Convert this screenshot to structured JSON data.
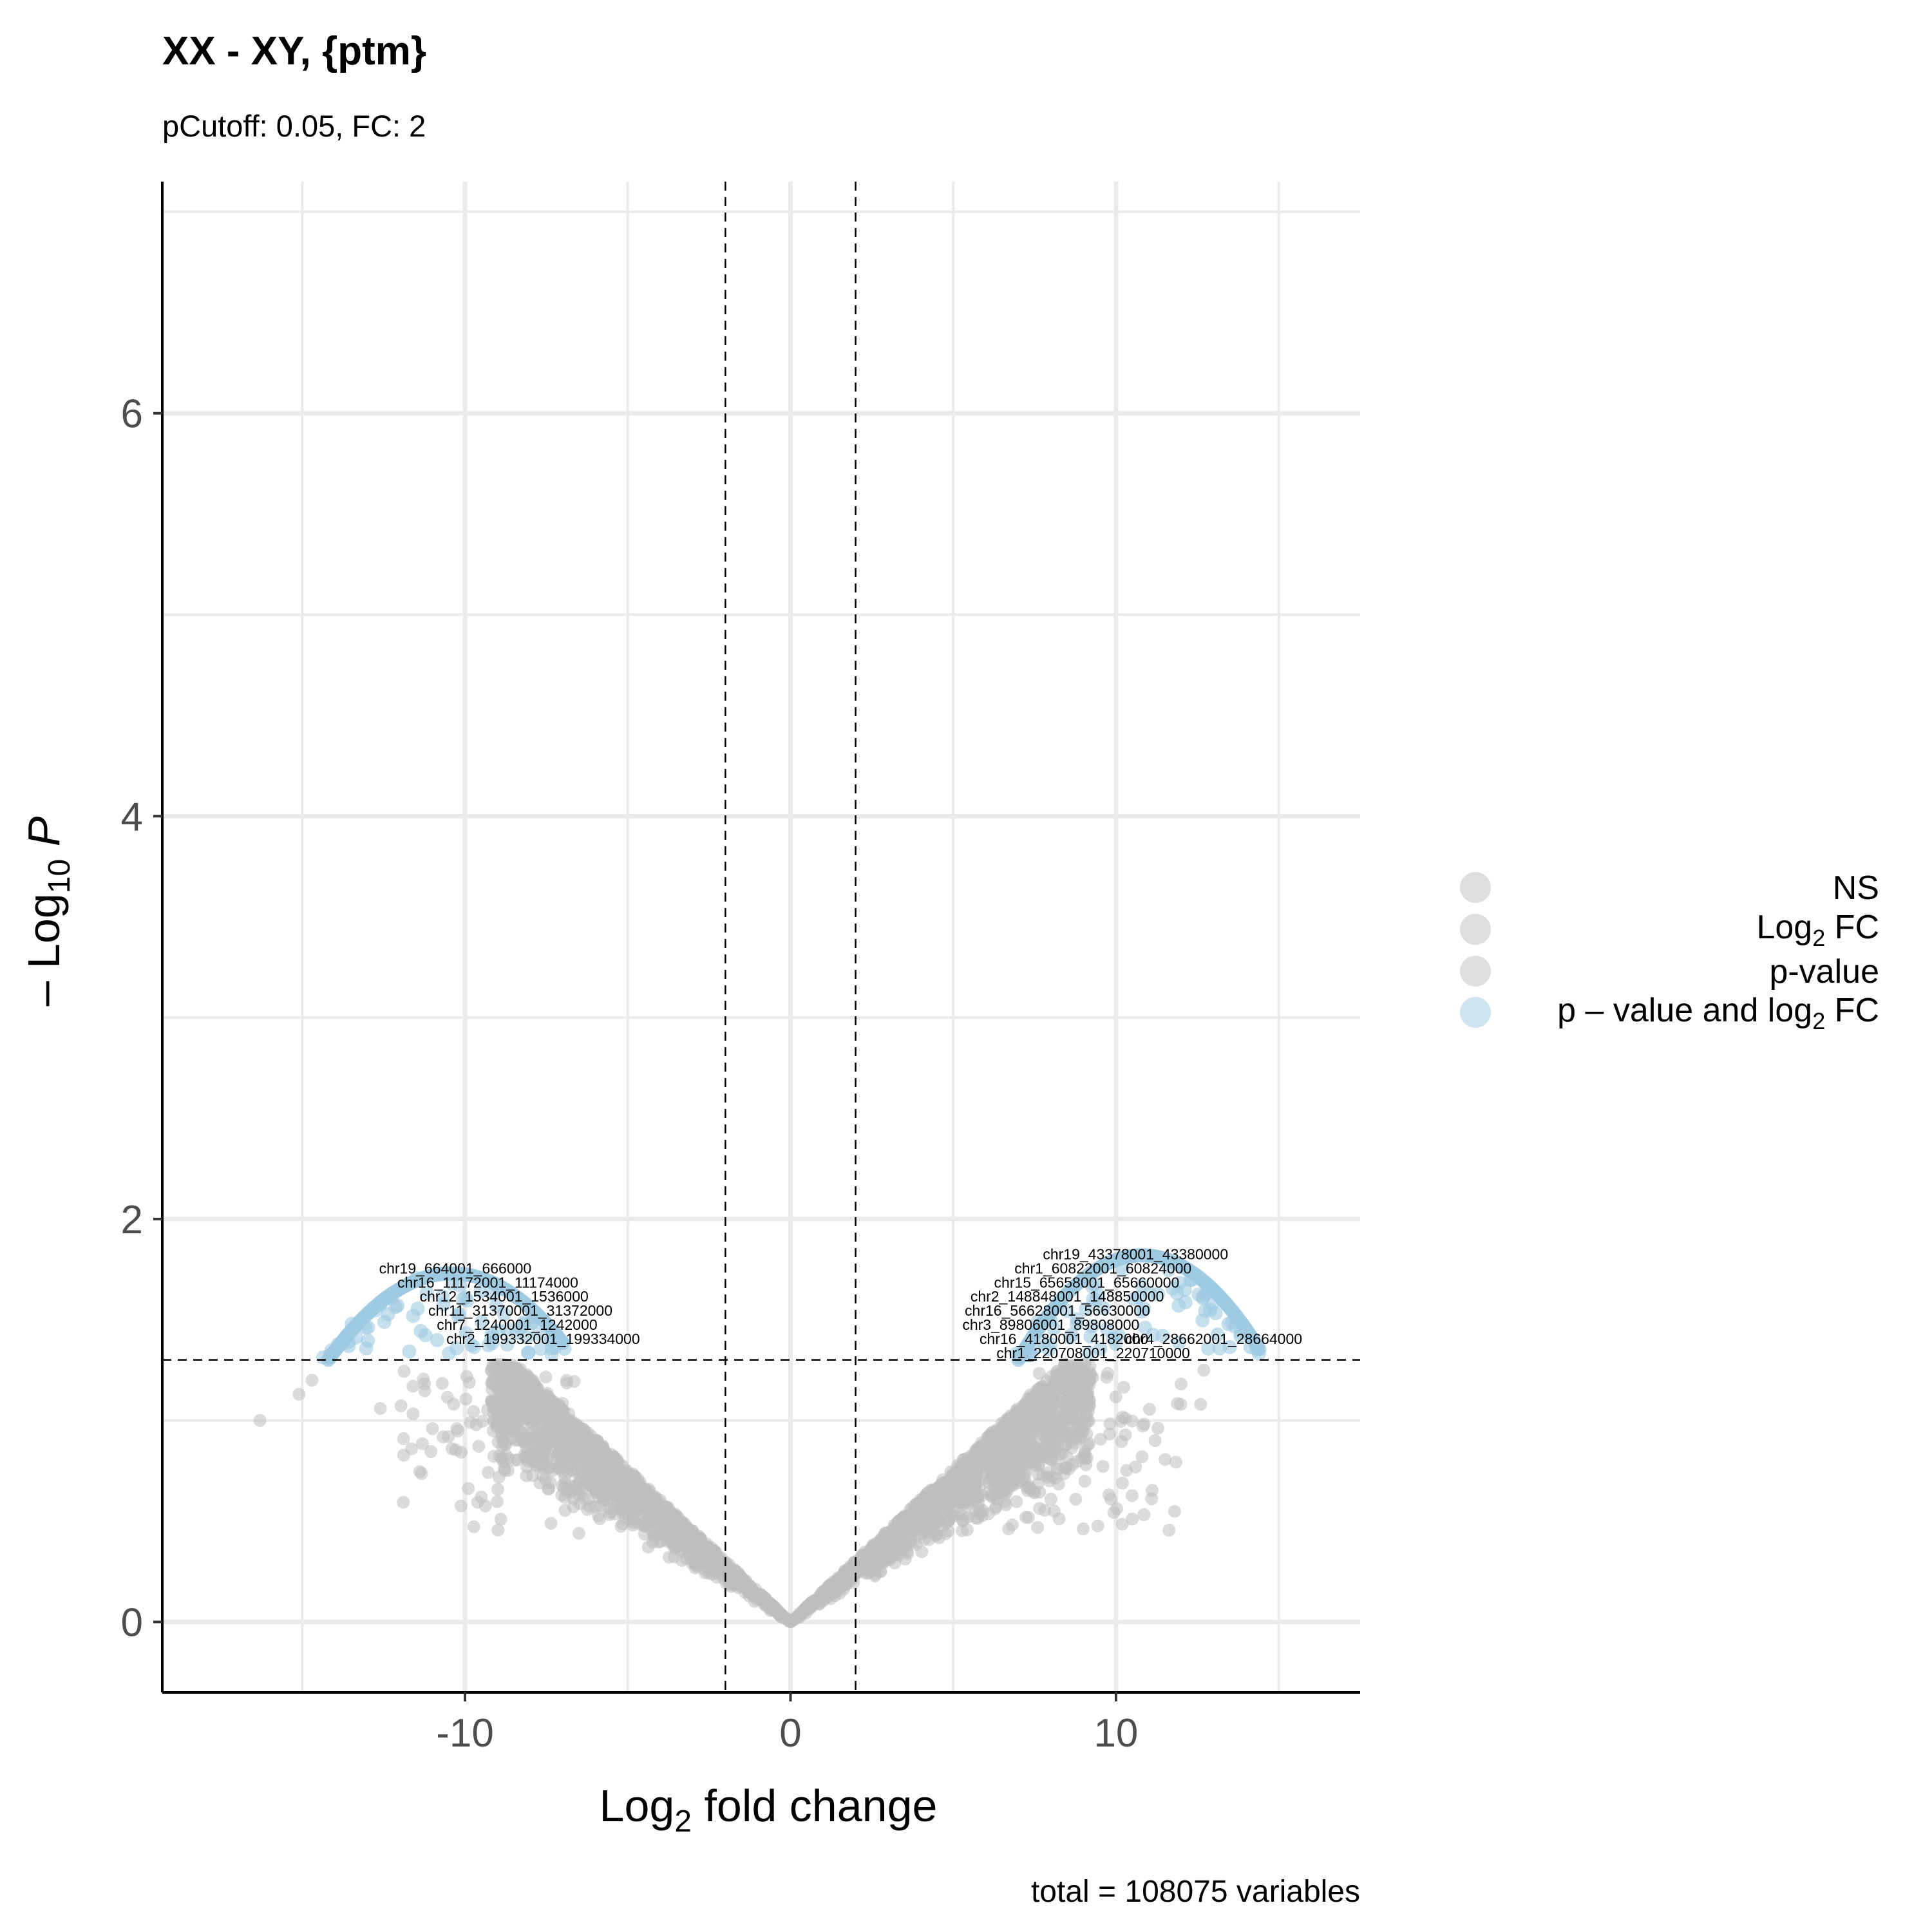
{
  "chart_data": {
    "type": "scatter",
    "title": "XX - XY, {ptm}",
    "subtitle": "pCutoff: 0.05, FC: 2",
    "caption": "total = 108075 variables",
    "xlabel": "Log2 fold change",
    "ylabel": "-Log10 P",
    "xlim": [
      -19.3,
      17.5
    ],
    "ylim": [
      -0.35,
      7.15
    ],
    "x_ticks": [
      -10,
      0,
      10
    ],
    "y_ticks": [
      0,
      2,
      4,
      6
    ],
    "grid": true,
    "cutoff_lines": {
      "vertical": [
        -2,
        2
      ],
      "horizontal": 1.301
    },
    "colors": {
      "NS": "#bdbdbd",
      "Log2 FC": "#bdbdbd",
      "p-value": "#bdbdbd",
      "p-value and log2 FC": "#9ecae1",
      "grid": "#ebebeb"
    },
    "legend": {
      "position": "right",
      "entries": [
        {
          "key": "NS",
          "label": "NS",
          "color": "#bdbdbd"
        },
        {
          "key": "log2fc",
          "label_main": "Log",
          "label_sub": "2",
          "label_tail": " FC",
          "color": "#bdbdbd"
        },
        {
          "key": "pvalue",
          "label": "p-value",
          "color": "#bdbdbd"
        },
        {
          "key": "both",
          "label_main": "p – value and log",
          "label_sub": "2",
          "label_tail": " FC",
          "color": "#9ecae1"
        }
      ]
    },
    "axis_text": {
      "x_main": "Log",
      "x_sub": "2",
      "x_tail": " fold change",
      "y_main": "– Log",
      "y_sub": "10",
      "y_tail": " P"
    },
    "series": [
      {
        "name": "NS",
        "color": "#bdbdbd",
        "description_points": [
          [
            -16.3,
            1.0
          ],
          [
            -15.1,
            1.13
          ],
          [
            -14.7,
            1.2
          ],
          [
            -12.6,
            1.06
          ],
          [
            -11.6,
            1.17
          ],
          [
            -11.0,
            0.96
          ],
          [
            -10.4,
            0.86
          ],
          [
            -9.5,
            0.62
          ],
          [
            -8.9,
            0.51
          ],
          [
            -6.5,
            0.44
          ],
          [
            11.2,
            0.9
          ],
          [
            12.6,
            1.08
          ],
          [
            10.8,
            0.82
          ],
          [
            8.1,
            0.55
          ],
          [
            12.7,
            1.25
          ]
        ]
      },
      {
        "name": "p-value and log2 FC",
        "color": "#9ecae1",
        "curve_left": {
          "x_range": [
            -14.2,
            -7.0
          ],
          "peak_x": -10.4,
          "peak_y": 1.73
        },
        "curve_right": {
          "x_range": [
            7.0,
            14.4
          ],
          "peak_x": 10.8,
          "peak_y": 1.82
        }
      }
    ],
    "point_labels": [
      {
        "text": "chr19_664001_666000",
        "x": -10.3,
        "y": 1.73
      },
      {
        "text": "chr16_11172001_11174000",
        "x": -9.3,
        "y": 1.66
      },
      {
        "text": "chr12_1534001_1536000",
        "x": -8.8,
        "y": 1.59
      },
      {
        "text": "chr11_31370001_31372000",
        "x": -8.3,
        "y": 1.52
      },
      {
        "text": "chr7_1240001_1242000",
        "x": -8.4,
        "y": 1.45
      },
      {
        "text": "chr2_199332001_199334000",
        "x": -7.6,
        "y": 1.38
      },
      {
        "text": "chr19_43378001_43380000",
        "x": 10.6,
        "y": 1.8
      },
      {
        "text": "chr1_60822001_60824000",
        "x": 9.6,
        "y": 1.73
      },
      {
        "text": "chr15_65658001_65660000",
        "x": 9.1,
        "y": 1.66
      },
      {
        "text": "chr2_148848001_148850000",
        "x": 8.5,
        "y": 1.59
      },
      {
        "text": "chr16_56628001_56630000",
        "x": 8.2,
        "y": 1.52
      },
      {
        "text": "chr3_89806001_89808000",
        "x": 8.0,
        "y": 1.45
      },
      {
        "text": "chr16_4180001_4182000",
        "x": 8.4,
        "y": 1.38
      },
      {
        "text": "chr4_28662001_28664000",
        "x": 13.0,
        "y": 1.38
      },
      {
        "text": "chr1_220708001_220710000",
        "x": 9.3,
        "y": 1.31
      }
    ]
  }
}
